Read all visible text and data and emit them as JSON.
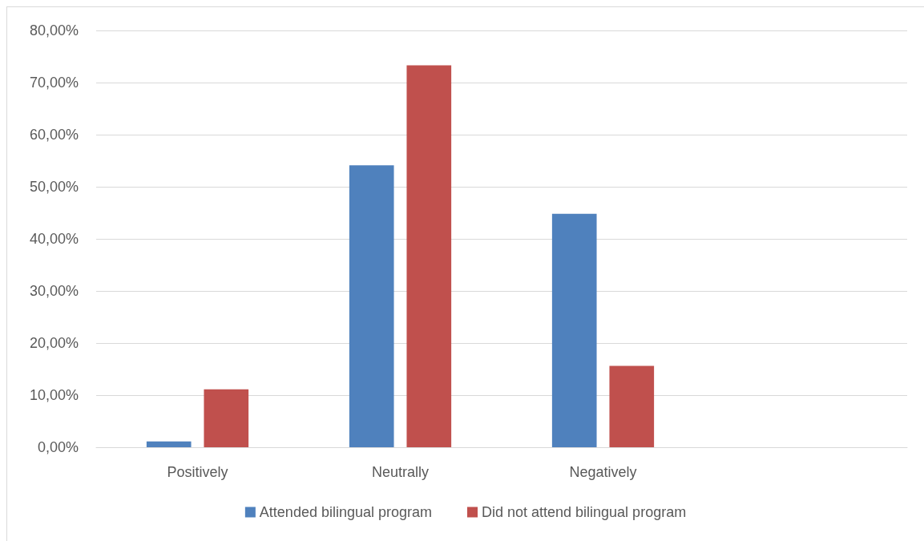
{
  "chart_data": {
    "type": "bar",
    "categories": [
      "Positively",
      "Neutrally",
      "Negatively",
      null
    ],
    "series": [
      {
        "name": "Attended bilingual program",
        "color": "#4f81bd",
        "values": [
          1.1,
          54.1,
          44.8,
          null
        ]
      },
      {
        "name": "Did not attend bilingual program",
        "color": "#c0504d",
        "values": [
          11.1,
          73.3,
          15.6,
          null
        ]
      }
    ],
    "ylim": [
      0,
      80
    ],
    "yticks": [
      {
        "value": 0,
        "label": "0,00%"
      },
      {
        "value": 10,
        "label": "10,00%"
      },
      {
        "value": 20,
        "label": "20,00%"
      },
      {
        "value": 30,
        "label": "30,00%"
      },
      {
        "value": 40,
        "label": "40,00%"
      },
      {
        "value": 50,
        "label": "50,00%"
      },
      {
        "value": 60,
        "label": "60,00%"
      },
      {
        "value": 70,
        "label": "70,00%"
      },
      {
        "value": 80,
        "label": "80,00%"
      }
    ],
    "grid": "y",
    "legend": "bottom"
  }
}
